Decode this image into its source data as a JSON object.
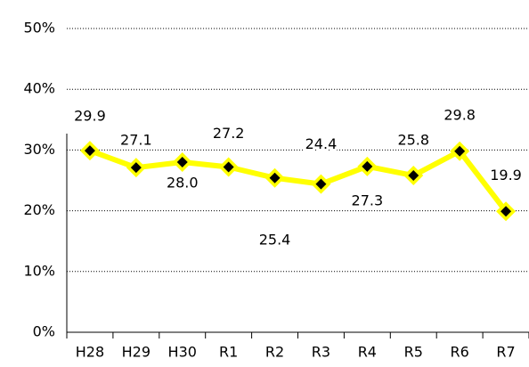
{
  "chart_data": {
    "type": "line",
    "categories": [
      "H28",
      "H29",
      "H30",
      "R1",
      "R2",
      "R3",
      "R4",
      "R5",
      "R6",
      "R7"
    ],
    "series": [
      {
        "name": null,
        "color": "#ffff00",
        "values": [
          29.9,
          27.1,
          28.0,
          27.2,
          25.4,
          24.4,
          27.3,
          25.8,
          29.8,
          19.9
        ],
        "value_labels": [
          "29.9",
          "27.1",
          "28.0",
          "27.2",
          "25.4",
          "24.4",
          "27.3",
          "25.8",
          "29.8",
          "19.9"
        ]
      }
    ],
    "ylim": [
      0,
      50
    ],
    "yticks": [
      {
        "value": 0,
        "label": "0%"
      },
      {
        "value": 10,
        "label": "10%"
      },
      {
        "value": 20,
        "label": "20%"
      },
      {
        "value": 30,
        "label": "30%"
      },
      {
        "value": 40,
        "label": "40%"
      },
      {
        "value": 50,
        "label": "50%"
      }
    ],
    "grid": true
  }
}
